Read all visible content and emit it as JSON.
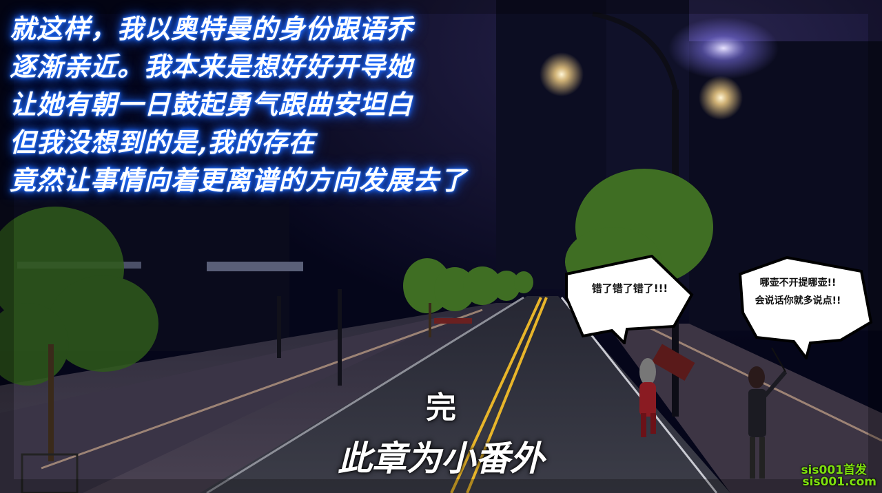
{
  "narration": [
    "就这样，我以奥特曼的身份跟语乔",
    "逐渐亲近。我本来是想好好开导她",
    "让她有朝一日鼓起勇气跟曲安坦白",
    "但我没想到的是,我的存在",
    "竟然让事情向着更离谱的方向发展去了"
  ],
  "speech_bubbles": {
    "left": "错了错了错了!!!",
    "right_line1": "哪壶不开提哪壶!!",
    "right_line2": "会说话你就多说点!!"
  },
  "ending": {
    "mark": "完",
    "subtitle": "此章为小番外"
  },
  "watermark": {
    "line1": "sis001首发",
    "line2": "sis001.com"
  },
  "colors": {
    "narration_glow": "#1e6cff",
    "watermark": "#7ee00e",
    "road_line": "#e8b52a"
  }
}
